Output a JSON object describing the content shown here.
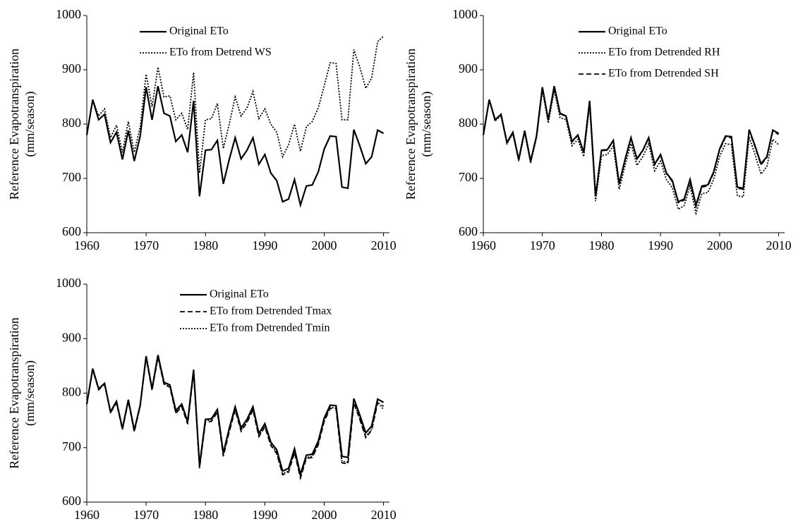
{
  "chart_data": [
    {
      "type": "line",
      "ylabel": [
        "Reference Evapotranspiration",
        "(mm/season)"
      ],
      "x": [
        1960,
        1961,
        1962,
        1963,
        1964,
        1965,
        1966,
        1967,
        1968,
        1969,
        1970,
        1971,
        1972,
        1973,
        1974,
        1975,
        1976,
        1977,
        1978,
        1979,
        1980,
        1981,
        1982,
        1983,
        1984,
        1985,
        1986,
        1987,
        1988,
        1989,
        1990,
        1991,
        1992,
        1993,
        1994,
        1995,
        1996,
        1997,
        1998,
        1999,
        2000,
        2001,
        2002,
        2003,
        2004,
        2005,
        2006,
        2007,
        2008,
        2009,
        2010
      ],
      "xlim": [
        1960,
        2011
      ],
      "xticks": [
        1960,
        1970,
        1980,
        1990,
        2000,
        2010
      ],
      "ylim": [
        600,
        1000
      ],
      "yticks": [
        600,
        700,
        800,
        900,
        1000
      ],
      "series": [
        {
          "name": "Original ETo",
          "color": "#000000",
          "dash": "solid",
          "values": [
            780,
            845,
            808,
            818,
            766,
            785,
            735,
            788,
            732,
            778,
            868,
            808,
            870,
            820,
            815,
            768,
            780,
            748,
            843,
            667,
            752,
            753,
            770,
            690,
            735,
            775,
            736,
            752,
            775,
            726,
            744,
            710,
            696,
            657,
            662,
            698,
            651,
            686,
            688,
            712,
            754,
            778,
            777,
            684,
            682,
            790,
            760,
            727,
            740,
            789,
            783
          ]
        },
        {
          "name": "ETo from Detrend WS",
          "color": "#000000",
          "dash": "dotted",
          "values": [
            780,
            845,
            815,
            828,
            775,
            798,
            748,
            805,
            748,
            795,
            892,
            832,
            905,
            850,
            852,
            808,
            820,
            790,
            895,
            710,
            808,
            810,
            838,
            755,
            800,
            850,
            815,
            830,
            860,
            810,
            828,
            800,
            785,
            740,
            762,
            800,
            750,
            795,
            805,
            830,
            870,
            913,
            912,
            808,
            808,
            937,
            905,
            866,
            885,
            952,
            962
          ]
        }
      ]
    },
    {
      "type": "line",
      "ylabel": [
        "Reference Evapotranspiration",
        "(mm/season)"
      ],
      "x": [
        1960,
        1961,
        1962,
        1963,
        1964,
        1965,
        1966,
        1967,
        1968,
        1969,
        1970,
        1971,
        1972,
        1973,
        1974,
        1975,
        1976,
        1977,
        1978,
        1979,
        1980,
        1981,
        1982,
        1983,
        1984,
        1985,
        1986,
        1987,
        1988,
        1989,
        1990,
        1991,
        1992,
        1993,
        1994,
        1995,
        1996,
        1997,
        1998,
        1999,
        2000,
        2001,
        2002,
        2003,
        2004,
        2005,
        2006,
        2007,
        2008,
        2009,
        2010
      ],
      "xlim": [
        1960,
        2011
      ],
      "xticks": [
        1960,
        1970,
        1980,
        1990,
        2000,
        2010
      ],
      "ylim": [
        600,
        1000
      ],
      "yticks": [
        600,
        700,
        800,
        900,
        1000
      ],
      "series": [
        {
          "name": "Original ETo",
          "color": "#000000",
          "dash": "solid",
          "values": [
            780,
            845,
            808,
            818,
            766,
            785,
            735,
            788,
            732,
            778,
            868,
            808,
            870,
            820,
            815,
            768,
            780,
            748,
            843,
            667,
            752,
            753,
            770,
            690,
            735,
            775,
            736,
            752,
            775,
            726,
            744,
            710,
            696,
            657,
            662,
            698,
            651,
            686,
            688,
            712,
            754,
            778,
            777,
            684,
            682,
            790,
            760,
            727,
            740,
            789,
            783
          ]
        },
        {
          "name": "ETo from Detrended RH",
          "color": "#000000",
          "dash": "dotted",
          "values": [
            780,
            843,
            806,
            815,
            764,
            782,
            732,
            785,
            728,
            775,
            862,
            802,
            862,
            812,
            808,
            760,
            772,
            740,
            835,
            658,
            742,
            744,
            760,
            680,
            724,
            764,
            724,
            740,
            764,
            714,
            732,
            698,
            683,
            643,
            650,
            686,
            636,
            672,
            674,
            698,
            740,
            764,
            762,
            668,
            666,
            776,
            744,
            708,
            722,
            772,
            762
          ]
        },
        {
          "name": "ETo from Detrended SH",
          "color": "#000000",
          "dash": "dashed",
          "values": [
            780,
            845,
            807,
            818,
            765,
            784,
            734,
            787,
            731,
            777,
            867,
            807,
            869,
            819,
            814,
            767,
            779,
            747,
            842,
            665,
            751,
            752,
            769,
            689,
            734,
            774,
            735,
            751,
            774,
            725,
            743,
            709,
            694,
            655,
            660,
            696,
            648,
            684,
            686,
            710,
            752,
            776,
            775,
            682,
            680,
            788,
            758,
            725,
            738,
            787,
            781
          ]
        }
      ]
    },
    {
      "type": "line",
      "ylabel": [
        "Reference Evapotranspiration",
        "(mm/season)"
      ],
      "x": [
        1960,
        1961,
        1962,
        1963,
        1964,
        1965,
        1966,
        1967,
        1968,
        1969,
        1970,
        1971,
        1972,
        1973,
        1974,
        1975,
        1976,
        1977,
        1978,
        1979,
        1980,
        1981,
        1982,
        1983,
        1984,
        1985,
        1986,
        1987,
        1988,
        1989,
        1990,
        1991,
        1992,
        1993,
        1994,
        1995,
        1996,
        1997,
        1998,
        1999,
        2000,
        2001,
        2002,
        2003,
        2004,
        2005,
        2006,
        2007,
        2008,
        2009,
        2010
      ],
      "xlim": [
        1960,
        2011
      ],
      "xticks": [
        1960,
        1970,
        1980,
        1990,
        2000,
        2010
      ],
      "ylim": [
        600,
        1000
      ],
      "yticks": [
        600,
        700,
        800,
        900,
        1000
      ],
      "series": [
        {
          "name": "Original ETo",
          "color": "#000000",
          "dash": "solid",
          "values": [
            780,
            845,
            808,
            818,
            766,
            785,
            735,
            788,
            732,
            778,
            868,
            808,
            870,
            820,
            815,
            768,
            780,
            748,
            843,
            667,
            752,
            753,
            770,
            690,
            735,
            775,
            736,
            752,
            775,
            726,
            744,
            710,
            696,
            657,
            662,
            698,
            651,
            686,
            688,
            712,
            754,
            778,
            777,
            684,
            682,
            790,
            760,
            727,
            740,
            789,
            783
          ]
        },
        {
          "name": "ETo from Detrended Tmax",
          "color": "#000000",
          "dash": "dashed",
          "values": [
            780,
            843,
            806,
            816,
            764,
            782,
            733,
            785,
            729,
            776,
            865,
            805,
            866,
            816,
            811,
            763,
            775,
            743,
            838,
            662,
            747,
            748,
            765,
            684,
            729,
            769,
            730,
            746,
            769,
            720,
            738,
            704,
            689,
            650,
            655,
            691,
            644,
            680,
            682,
            705,
            748,
            772,
            771,
            672,
            670,
            782,
            752,
            718,
            732,
            782,
            776
          ]
        },
        {
          "name": "ETo from Detrended Tmin",
          "color": "#000000",
          "dash": "dotted",
          "values": [
            780,
            844,
            807,
            817,
            765,
            783,
            734,
            786,
            730,
            777,
            866,
            806,
            868,
            817,
            812,
            765,
            777,
            745,
            840,
            664,
            749,
            750,
            767,
            686,
            731,
            771,
            732,
            748,
            771,
            722,
            740,
            706,
            691,
            652,
            657,
            693,
            646,
            682,
            684,
            707,
            750,
            774,
            773,
            675,
            673,
            784,
            754,
            720,
            734,
            784,
            770
          ]
        }
      ]
    }
  ]
}
